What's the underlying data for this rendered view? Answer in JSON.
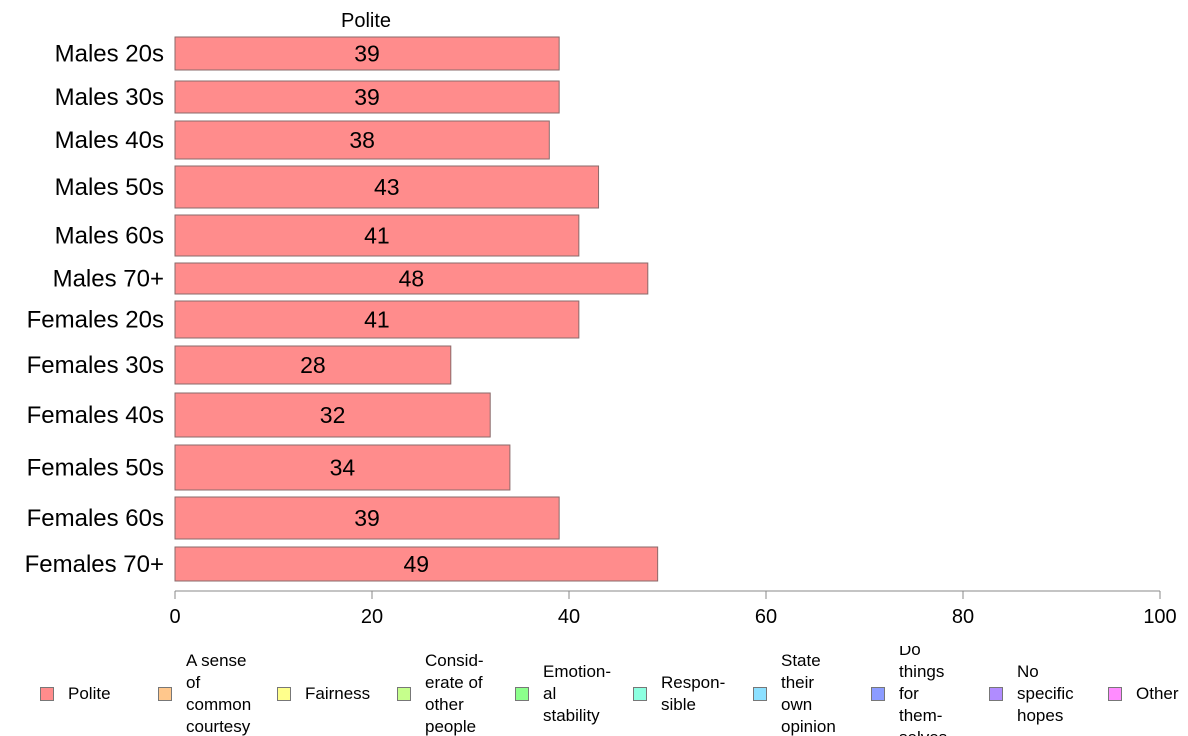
{
  "chart_data": {
    "type": "bar",
    "orientation": "horizontal",
    "stacked": true,
    "categories": [
      "Males 20s",
      "Males 30s",
      "Males 40s",
      "Males 50s",
      "Males 60s",
      "Males 70+",
      "Females 20s",
      "Females 30s",
      "Females 40s",
      "Females 50s",
      "Females 60s",
      "Females 70+"
    ],
    "series": [
      {
        "name": "Polite",
        "color": "#ff8c8c",
        "values": [
          39,
          39,
          38,
          43,
          41,
          48,
          41,
          28,
          32,
          34,
          39,
          49
        ]
      }
    ],
    "column_label": "Polite",
    "xlim": [
      0,
      100
    ],
    "xticks": [
      0,
      20,
      40,
      60,
      80,
      100
    ],
    "grid": false,
    "legend": {
      "position": "bottom",
      "items": [
        {
          "label": "Polite",
          "color": "#ff8c8c"
        },
        {
          "label": "A sense\nof\ncommon\ncourtesy",
          "color": "#ffc78c"
        },
        {
          "label": "Fairness",
          "color": "#ffff8c"
        },
        {
          "label": "Consid-\nerate of\nother\npeople",
          "color": "#c6ff8c"
        },
        {
          "label": "Emotion-\nal\nstability",
          "color": "#8cff8c"
        },
        {
          "label": "Respon-\nsible",
          "color": "#8cffe0"
        },
        {
          "label": "State\ntheir\nown\nopinion",
          "color": "#8ce0ff"
        },
        {
          "label": "Do\nthings\nfor\nthem-\nselves",
          "color": "#8c9cff"
        },
        {
          "label": "No\nspecific\nhopes",
          "color": "#b08cff"
        },
        {
          "label": "Other",
          "color": "#ff8cff"
        }
      ]
    }
  }
}
